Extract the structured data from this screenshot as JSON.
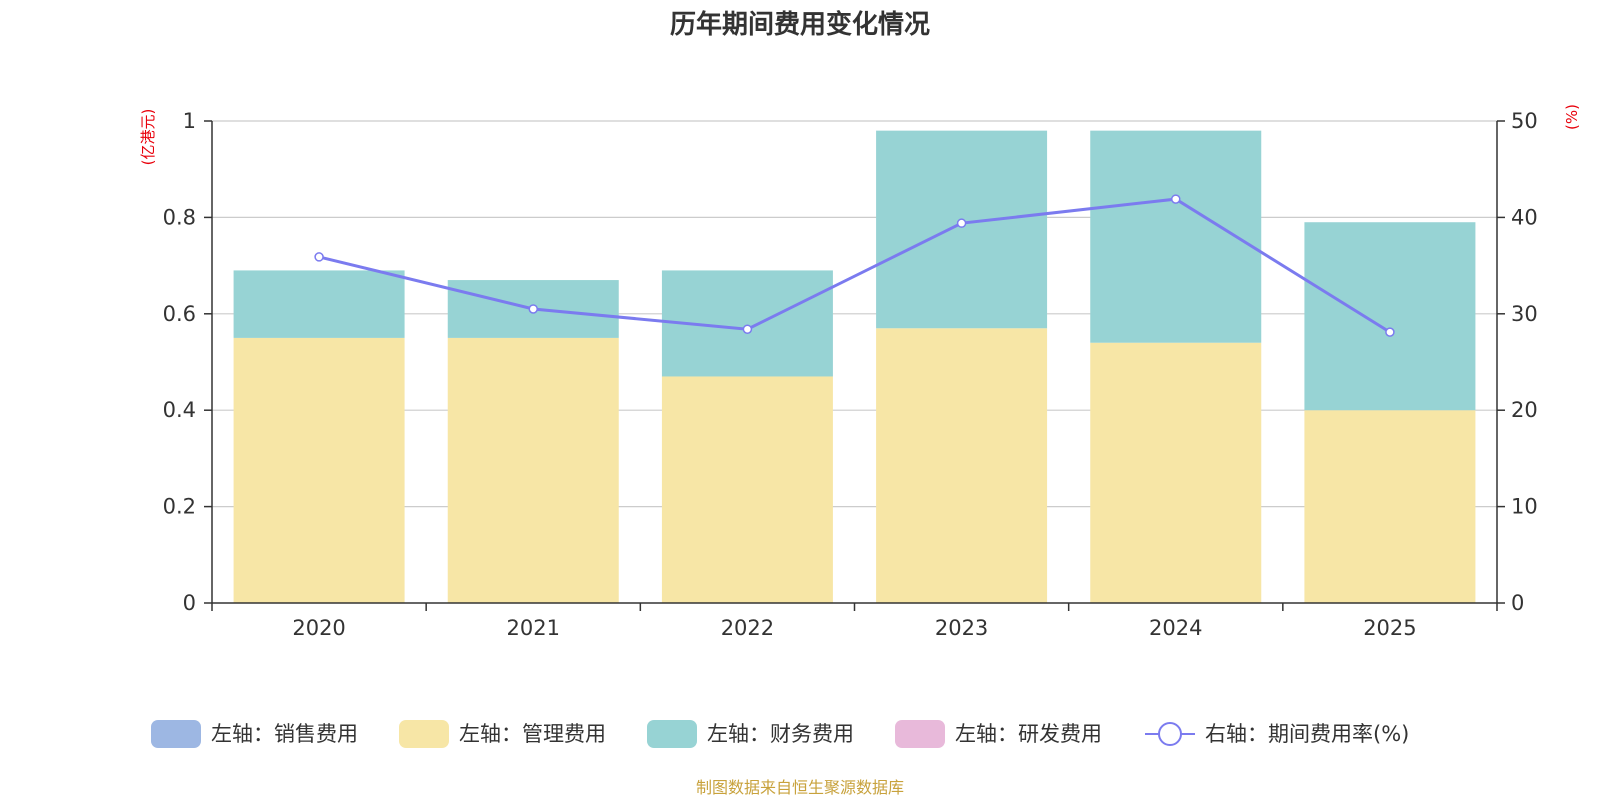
{
  "chart_data": {
    "type": "bar",
    "stacked": true,
    "title": "历年期间费用变化情况",
    "categories": [
      "2020",
      "2021",
      "2022",
      "2023",
      "2024",
      "2025"
    ],
    "left_axis": {
      "unit_label": "(亿港元)",
      "ylim": [
        0,
        1
      ],
      "ticks": [
        "0",
        "0.2",
        "0.4",
        "0.6",
        "0.8",
        "1"
      ]
    },
    "right_axis": {
      "unit_label": "(%)",
      "ylim": [
        0,
        50
      ],
      "ticks": [
        "0",
        "10",
        "20",
        "30",
        "40",
        "50"
      ]
    },
    "series": [
      {
        "name": "左轴：销售费用",
        "type": "bar",
        "axis": "left",
        "color": "#9db7e3",
        "values": [
          0,
          0,
          0,
          0,
          0,
          0
        ]
      },
      {
        "name": "左轴：管理费用",
        "type": "bar",
        "axis": "left",
        "color": "#f7e6a6",
        "values": [
          0.55,
          0.55,
          0.47,
          0.57,
          0.54,
          0.4
        ]
      },
      {
        "name": "左轴：财务费用",
        "type": "bar",
        "axis": "left",
        "color": "#97d3d4",
        "values": [
          0.14,
          0.12,
          0.22,
          0.41,
          0.44,
          0.39
        ]
      },
      {
        "name": "左轴：研发费用",
        "type": "bar",
        "axis": "left",
        "color": "#e8b9da",
        "values": [
          0,
          0,
          0,
          0,
          0,
          0
        ]
      },
      {
        "name": "右轴：期间费用率(%)",
        "type": "line",
        "axis": "right",
        "color": "#7b7bef",
        "values": [
          35.9,
          30.5,
          28.4,
          39.4,
          41.9,
          28.1
        ]
      }
    ],
    "source_note": "制图数据来自恒生聚源数据库",
    "unit_color": "#e8000b",
    "source_color": "#c8a23c"
  }
}
